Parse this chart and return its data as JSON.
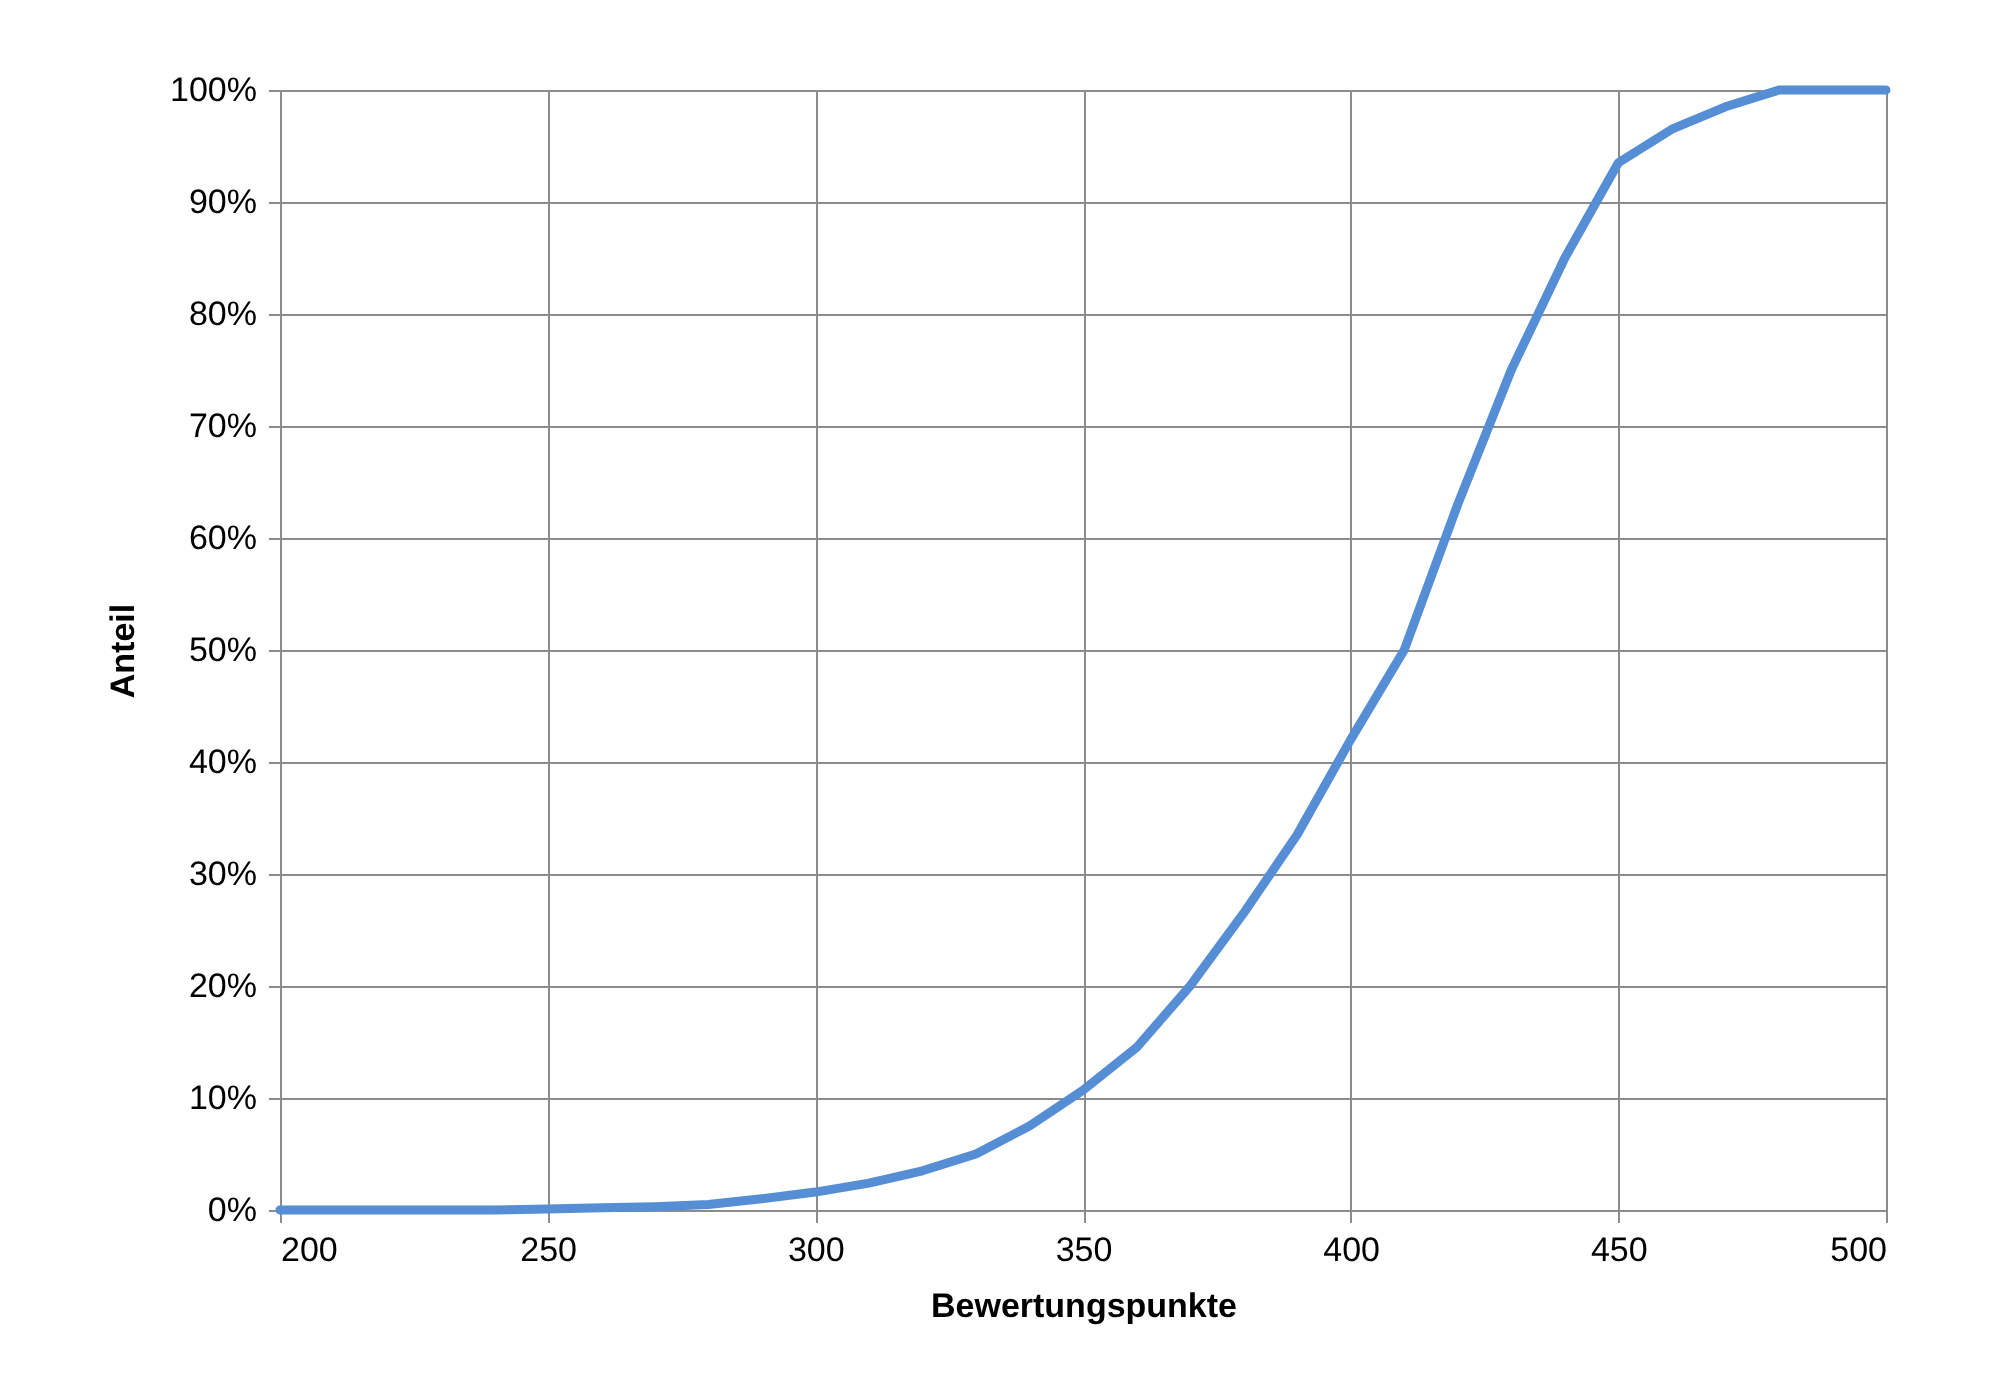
{
  "chart_data": {
    "type": "line",
    "xlabel": "Bewertungspunkte",
    "ylabel": "Anteil",
    "x": [
      200,
      210,
      220,
      230,
      240,
      250,
      260,
      270,
      280,
      290,
      300,
      310,
      320,
      330,
      340,
      350,
      360,
      370,
      380,
      390,
      400,
      410,
      420,
      430,
      440,
      450,
      460,
      470,
      480,
      490,
      500
    ],
    "series": [
      {
        "color": "#558ed5",
        "values": [
          0,
          0,
          0,
          0,
          0,
          0.1,
          0.2,
          0.3,
          0.5,
          1.0,
          1.6,
          2.4,
          3.5,
          5.0,
          7.5,
          10.7,
          14.5,
          20,
          26.5,
          33.5,
          42,
          50,
          63,
          75,
          85,
          93.5,
          96.5,
          98.5,
          100,
          100,
          100
        ]
      }
    ],
    "xlim": [
      200,
      500
    ],
    "xticks": [
      200,
      250,
      300,
      350,
      400,
      450,
      500
    ],
    "ylim": [
      0,
      100
    ],
    "yticks": [
      {
        "value": 0,
        "label": "0%"
      },
      {
        "value": 10,
        "label": "10%"
      },
      {
        "value": 20,
        "label": "20%"
      },
      {
        "value": 30,
        "label": "30%"
      },
      {
        "value": 40,
        "label": "40%"
      },
      {
        "value": 50,
        "label": "50%"
      },
      {
        "value": 60,
        "label": "60%"
      },
      {
        "value": 70,
        "label": "70%"
      },
      {
        "value": 80,
        "label": "80%"
      },
      {
        "value": 90,
        "label": "90%"
      },
      {
        "value": 100,
        "label": "100%"
      }
    ],
    "grid": true,
    "legend": false,
    "marker": "none",
    "line_style": "solid"
  }
}
